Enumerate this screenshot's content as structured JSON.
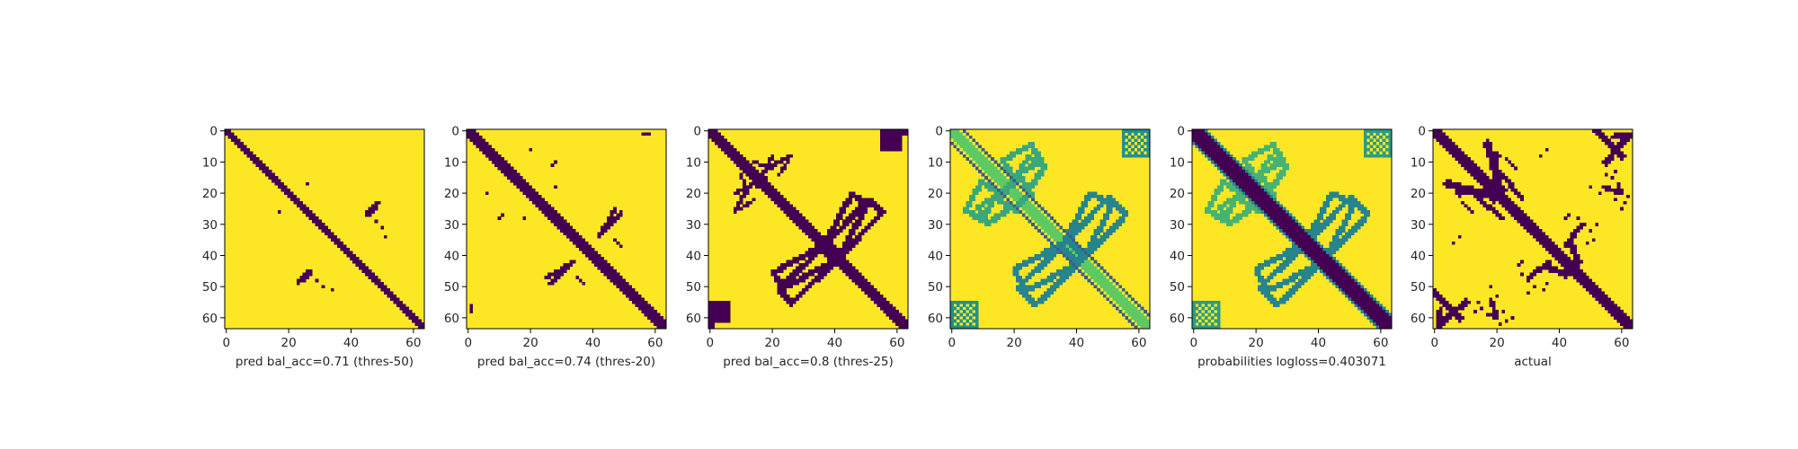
{
  "colors": {
    "viridis_low": "#440154",
    "viridis_mid": "#21918c",
    "viridis_high": "#fde725"
  },
  "chart_data": [
    {
      "type": "heatmap",
      "xlabel": "pred bal_acc=0.71 (thres-50)",
      "grid_size": 64,
      "xticks": [
        0,
        20,
        40,
        60
      ],
      "yticks": [
        0,
        10,
        20,
        30,
        40,
        50,
        60
      ],
      "colormap": "viridis",
      "value_kind": "binary",
      "features": [
        {
          "kind": "diagonal",
          "offset": 0,
          "width": 2,
          "from": 0,
          "to": 64,
          "value": 0
        },
        {
          "kind": "segment",
          "from": [
            27,
            45
          ],
          "to": [
            23,
            48
          ],
          "width": 1.2,
          "value": 0
        },
        {
          "kind": "segment",
          "from": [
            46,
            27
          ],
          "to": [
            48,
            25
          ],
          "width": 1.2,
          "value": 0
        },
        {
          "kind": "points",
          "cells": [
            [
              31,
              50
            ],
            [
              34,
              51
            ],
            [
              17,
              26
            ],
            [
              23,
              49
            ],
            [
              29,
              48
            ]
          ],
          "value": 0
        }
      ]
    },
    {
      "type": "heatmap",
      "xlabel": "pred bal_acc=0.74 (thres-20)",
      "grid_size": 64,
      "xticks": [
        0,
        20,
        40,
        60
      ],
      "yticks": [
        0,
        10,
        20,
        30,
        40,
        50,
        60
      ],
      "colormap": "viridis",
      "value_kind": "binary",
      "features": [
        {
          "kind": "diagonal",
          "offset": 0,
          "width": 3,
          "from": 0,
          "to": 64,
          "value": 0
        },
        {
          "kind": "segment",
          "from": [
            25,
            47
          ],
          "to": [
            34,
            42
          ],
          "width": 1.2,
          "value": 0
        },
        {
          "kind": "segment",
          "from": [
            42,
            34
          ],
          "to": [
            49,
            26
          ],
          "width": 1.5,
          "value": 0
        },
        {
          "kind": "points",
          "cells": [
            [
              56,
              1
            ],
            [
              57,
              1
            ],
            [
              1,
              58
            ],
            [
              28,
              10
            ],
            [
              27,
              11
            ],
            [
              20,
              6
            ],
            [
              18,
              28
            ],
            [
              35,
              47
            ],
            [
              36,
              48
            ],
            [
              37,
              49
            ]
          ],
          "value": 0
        }
      ]
    },
    {
      "type": "heatmap",
      "xlabel": "pred bal_acc=0.8 (thres-25)",
      "grid_size": 64,
      "xticks": [
        0,
        20,
        40,
        60
      ],
      "yticks": [
        0,
        10,
        20,
        30,
        40,
        50,
        60
      ],
      "colormap": "viridis",
      "value_kind": "binary",
      "features": [
        {
          "kind": "diagonal",
          "offset": 0,
          "width": 4,
          "from": 0,
          "to": 64,
          "value": 0
        },
        {
          "kind": "loop",
          "a": [
            22,
            48
          ],
          "b": [
            40,
            38
          ],
          "half_width": 3,
          "value": 0
        },
        {
          "kind": "loop",
          "a": [
            38,
            40
          ],
          "b": [
            53,
            24
          ],
          "half_width": 3,
          "value": 0
        },
        {
          "kind": "segment",
          "from": [
            10,
            25
          ],
          "to": [
            14,
            22
          ],
          "width": 1,
          "value": 0
        },
        {
          "kind": "segment",
          "from": [
            14,
            10
          ],
          "to": [
            20,
            12
          ],
          "width": 1,
          "value": 0
        },
        {
          "kind": "segment",
          "from": [
            18,
            12
          ],
          "to": [
            26,
            8
          ],
          "width": 1,
          "value": 0
        },
        {
          "kind": "segment",
          "from": [
            15,
            18
          ],
          "to": [
            20,
            8
          ],
          "width": 1,
          "value": 0
        },
        {
          "kind": "block",
          "rows": [
            55,
            60
          ],
          "cols": [
            0,
            6
          ],
          "value": 0
        },
        {
          "kind": "block",
          "rows": [
            0,
            6
          ],
          "cols": [
            55,
            61
          ],
          "value": 0
        },
        {
          "kind": "points",
          "cells": [
            [
              61,
              0
            ],
            [
              62,
              1
            ],
            [
              63,
              0
            ],
            [
              0,
              62
            ],
            [
              1,
              63
            ],
            [
              2,
              60
            ]
          ],
          "value": 0
        }
      ]
    },
    {
      "type": "heatmap",
      "xlabel": "",
      "grid_size": 64,
      "xticks": [
        0,
        20,
        40,
        60
      ],
      "yticks": [
        0,
        10,
        20,
        30,
        40,
        50,
        60
      ],
      "colormap": "viridis",
      "value_kind": "continuous",
      "features": [
        {
          "kind": "diagonal",
          "offset": 4,
          "width": 0.8,
          "from": 0,
          "to": 64,
          "value": 0.3
        },
        {
          "kind": "diagonal",
          "offset": -4,
          "width": 0.8,
          "from": 0,
          "to": 64,
          "value": 0.3
        },
        {
          "kind": "diagonal",
          "offset": 0,
          "width": 3,
          "from": 0,
          "to": 64,
          "value": 0.75
        },
        {
          "kind": "loop",
          "a": [
            22,
            48
          ],
          "b": [
            40,
            38
          ],
          "half_width": 4,
          "value": 0.45
        },
        {
          "kind": "loop",
          "a": [
            38,
            40
          ],
          "b": [
            53,
            24
          ],
          "half_width": 4,
          "value": 0.45
        },
        {
          "kind": "loop",
          "a": [
            10,
            27
          ],
          "b": [
            24,
            18
          ],
          "half_width": 3,
          "value": 0.6
        },
        {
          "kind": "loop",
          "a": [
            18,
            12
          ],
          "b": [
            27,
            7
          ],
          "half_width": 3,
          "value": 0.6
        },
        {
          "kind": "block",
          "rows": [
            55,
            63
          ],
          "cols": [
            0,
            8
          ],
          "value": 0.5
        },
        {
          "kind": "block",
          "rows": [
            0,
            8
          ],
          "cols": [
            55,
            63
          ],
          "value": 0.5
        }
      ]
    },
    {
      "type": "heatmap",
      "xlabel": "probabilities logloss=0.403071",
      "grid_size": 64,
      "xticks": [
        0,
        20,
        40,
        60
      ],
      "yticks": [
        0,
        10,
        20,
        30,
        40,
        50,
        60
      ],
      "colormap": "viridis",
      "value_kind": "continuous",
      "features": [
        {
          "kind": "diagonal",
          "offset": 0,
          "width": 4.5,
          "from": 0,
          "to": 64,
          "value": 0.0
        },
        {
          "kind": "diagonal",
          "offset": 0,
          "width": 7,
          "from": 0,
          "to": 64,
          "value": 0.45
        },
        {
          "kind": "loop",
          "a": [
            22,
            48
          ],
          "b": [
            40,
            38
          ],
          "half_width": 4,
          "value": 0.45
        },
        {
          "kind": "loop",
          "a": [
            38,
            40
          ],
          "b": [
            53,
            24
          ],
          "half_width": 4,
          "value": 0.45
        },
        {
          "kind": "loop",
          "a": [
            10,
            27
          ],
          "b": [
            24,
            18
          ],
          "half_width": 3,
          "value": 0.65
        },
        {
          "kind": "loop",
          "a": [
            18,
            12
          ],
          "b": [
            27,
            7
          ],
          "half_width": 3,
          "value": 0.65
        },
        {
          "kind": "block",
          "rows": [
            55,
            63
          ],
          "cols": [
            0,
            8
          ],
          "value": 0.55
        },
        {
          "kind": "block",
          "rows": [
            0,
            8
          ],
          "cols": [
            55,
            63
          ],
          "value": 0.55
        }
      ]
    },
    {
      "type": "heatmap",
      "xlabel": "actual",
      "grid_size": 64,
      "xticks": [
        0,
        20,
        40,
        60
      ],
      "yticks": [
        0,
        10,
        20,
        30,
        40,
        50,
        60
      ],
      "colormap": "viridis",
      "value_kind": "binary",
      "features": [
        {
          "kind": "diagonal",
          "offset": 0,
          "width": 4,
          "from": 0,
          "to": 64,
          "value": 0
        },
        {
          "kind": "segment",
          "from": [
            17,
            4
          ],
          "to": [
            22,
            22
          ],
          "width": 2.5,
          "value": 0
        },
        {
          "kind": "segment",
          "from": [
            8,
            20
          ],
          "to": [
            22,
            19
          ],
          "width": 2,
          "value": 0
        },
        {
          "kind": "segment",
          "from": [
            13,
            21
          ],
          "to": [
            22,
            28
          ],
          "width": 1.5,
          "value": 0
        },
        {
          "kind": "segment",
          "from": [
            26,
            12
          ],
          "to": [
            23,
            9
          ],
          "width": 1.2,
          "value": 0
        },
        {
          "kind": "segment",
          "from": [
            4,
            60
          ],
          "to": [
            10,
            55
          ],
          "width": 2,
          "value": 0
        },
        {
          "kind": "segment",
          "from": [
            1,
            63
          ],
          "to": [
            4,
            60
          ],
          "width": 1.5,
          "value": 0
        },
        {
          "kind": "segment",
          "from": [
            18,
            54
          ],
          "to": [
            20,
            60
          ],
          "width": 1.5,
          "value": 0
        },
        {
          "kind": "segment",
          "from": [
            20,
            60
          ],
          "to": [
            17,
            59
          ],
          "width": 1.2,
          "value": 0
        },
        {
          "kind": "segment",
          "from": [
            52,
            0
          ],
          "to": [
            60,
            8
          ],
          "width": 2,
          "value": 0
        },
        {
          "kind": "segment",
          "from": [
            57,
            2
          ],
          "to": [
            61,
            1
          ],
          "width": 1.5,
          "value": 0
        },
        {
          "kind": "segment",
          "from": [
            44,
            37
          ],
          "to": [
            46,
            42
          ],
          "width": 2,
          "value": 0
        },
        {
          "kind": "segment",
          "from": [
            47,
            30
          ],
          "to": [
            42,
            37
          ],
          "width": 1.5,
          "value": 0
        },
        {
          "kind": "points",
          "cells": [
            [
              27,
              43
            ],
            [
              28,
              42
            ],
            [
              28,
              46
            ],
            [
              35,
              51
            ],
            [
              36,
              49
            ],
            [
              50,
              18
            ],
            [
              53,
              20
            ],
            [
              56,
              19
            ],
            [
              58,
              22
            ],
            [
              60,
              25
            ],
            [
              61,
              23
            ],
            [
              62,
              21
            ],
            [
              55,
              14
            ],
            [
              52,
              30
            ],
            [
              50,
              32
            ],
            [
              48,
              30
            ],
            [
              58,
              13
            ],
            [
              57,
              15
            ],
            [
              6,
              36
            ],
            [
              8,
              34
            ]
          ],
          "value": 0
        }
      ]
    }
  ]
}
